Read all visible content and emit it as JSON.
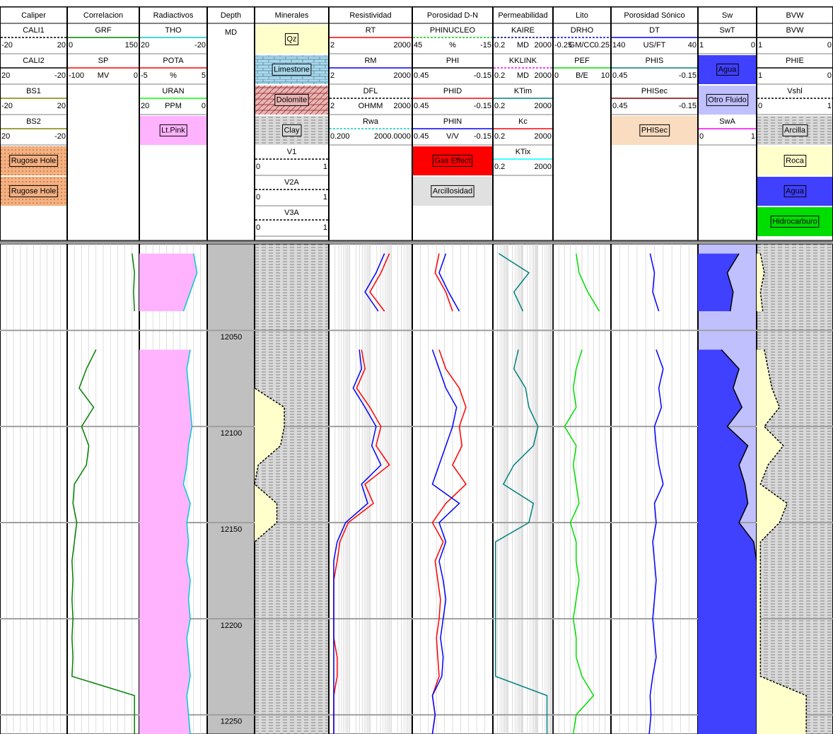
{
  "chart_data": {
    "type": "well-log",
    "ylim": [
      12005,
      12260
    ],
    "yticks": [
      12050,
      12100,
      12150,
      12200,
      12250
    ],
    "depth": [
      12010,
      12020,
      12030,
      12040,
      12050,
      12060,
      12070,
      12080,
      12090,
      12100,
      12110,
      12120,
      12130,
      12140,
      12150,
      12160,
      12170,
      12180,
      12190,
      12200,
      12210,
      12220,
      12230,
      12240,
      12250,
      12260
    ],
    "tracks": [
      {
        "title": "Caliper",
        "items": [
          {
            "name": "CALI1",
            "left": -20,
            "right": 20,
            "color": "#000000",
            "dash": true
          },
          {
            "name": "CALI2",
            "left": 20,
            "right": -20,
            "color": "#000000"
          },
          {
            "name": "BS1",
            "left": -20,
            "right": 20,
            "color": "#808000"
          },
          {
            "name": "BS2",
            "left": 20,
            "right": -20,
            "color": "#808000"
          },
          {
            "label": "Rugose Hole",
            "color": "#f4b183",
            "pattern": "dots"
          },
          {
            "label": "Rugose Hole",
            "color": "#f4b183",
            "pattern": "dots"
          }
        ]
      },
      {
        "title": "Correlacion",
        "items": [
          {
            "name": "GRF",
            "left": 0,
            "right": 150,
            "color": "#008000",
            "values": [
              135,
              140,
              138,
              140,
              null,
              60,
              40,
              25,
              55,
              30,
              45,
              40,
              15,
              12,
              20,
              15,
              10,
              12,
              10,
              12,
              10,
              12,
              10,
              140,
              140,
              140
            ]
          },
          {
            "name": "SP",
            "left": -100,
            "unit": "MV",
            "right": 0,
            "color": "#ff0000"
          }
        ]
      },
      {
        "title": "Radiactivos",
        "items": [
          {
            "name": "THO",
            "left": 20,
            "right": -20,
            "color": "#00cccc",
            "fill": "#ffb3ff",
            "values": [
              -12,
              -14,
              -10,
              -6,
              null,
              -10,
              -8,
              -9,
              -10,
              -11,
              -9,
              -8,
              -6,
              -10,
              -8,
              -9,
              -8,
              -10,
              -9,
              -10,
              -8,
              -9,
              -10,
              -8,
              -9,
              -10
            ]
          },
          {
            "name": "POTA",
            "left": -5,
            "unit": "%",
            "right": 5,
            "color": "#ff0000"
          },
          {
            "name": "URAN",
            "left": 20,
            "unit": "PPM",
            "right": 0,
            "color": "#00ff00"
          },
          {
            "label": "Lt.Pink",
            "color": "#ffb3ff"
          }
        ]
      },
      {
        "title": "Depth",
        "unit": "MD",
        "background": "#c0c0c0",
        "items": []
      },
      {
        "title": "Minerales",
        "background": "#d9d9d9",
        "pattern": "dash",
        "items": [
          {
            "label": "Qz",
            "color": "#ffffcc"
          },
          {
            "label": "Limestone",
            "color": "#a9d8ec",
            "pattern": "brick"
          },
          {
            "label": "Dolomite",
            "color": "#e8b4b4",
            "pattern": "hatch"
          },
          {
            "label": "Clay",
            "color": "#d9d9d9",
            "pattern": "dash"
          },
          {
            "name": "V1",
            "left": 0,
            "right": 1,
            "color": "#000000",
            "dash": true,
            "fill": "#ffffcc",
            "values": [
              0,
              0,
              0,
              0,
              null,
              0,
              0,
              0,
              0.4,
              0.4,
              0.35,
              0.05,
              0,
              0.3,
              0.3,
              0,
              0,
              0,
              0,
              0,
              0,
              0,
              0,
              0,
              0,
              0
            ]
          },
          {
            "name": "V2A",
            "left": 0,
            "right": 1,
            "color": "#000000",
            "dash": true
          },
          {
            "name": "V3A",
            "left": 0,
            "right": 1,
            "color": "#000000",
            "dash": true
          }
        ]
      },
      {
        "title": "Resistividad",
        "log": true,
        "items": [
          {
            "name": "RT",
            "left": 2,
            "right": 2000,
            "color": "#ff0000",
            "values": [
              300,
              150,
              60,
              200,
              null,
              30,
              40,
              20,
              60,
              150,
              100,
              300,
              40,
              80,
              10,
              5,
              4,
              3,
              3,
              3,
              3,
              4,
              4,
              3,
              3,
              3
            ]
          },
          {
            "name": "RM",
            "left": 2,
            "right": 2000,
            "color": "#0000ff",
            "values": [
              200,
              100,
              40,
              120,
              null,
              25,
              30,
              15,
              40,
              100,
              70,
              150,
              30,
              50,
              8,
              4,
              3,
              3,
              3,
              3,
              3,
              3,
              3,
              3,
              3,
              3
            ]
          },
          {
            "name": "DFL",
            "left": 2,
            "unit": "OHMM",
            "right": 2000,
            "color": "#000000",
            "dash": true
          },
          {
            "name": "Rwa",
            "left": {
              "value": 0.2,
              "label": "0.200"
            },
            "right": {
              "value": 2000,
              "label": "2000.0000"
            },
            "color": "#00cccc",
            "dash": true
          }
        ]
      },
      {
        "title": "Porosidad D-N",
        "items": [
          {
            "name": "PHINUCLEO",
            "left": 45,
            "unit": "%",
            "right": -15,
            "color": "#00cc00",
            "dash": true
          },
          {
            "name": "PHI",
            "left": 0.45,
            "right": -0.15,
            "color": "#000000"
          },
          {
            "name": "PHID",
            "left": 0.45,
            "right": -0.15,
            "color": "#ff0000",
            "values": [
              0.25,
              0.28,
              0.2,
              0.15,
              null,
              0.25,
              0.2,
              0.1,
              0.05,
              0.1,
              0.08,
              0.15,
              0.05,
              0.2,
              0.3,
              0.22,
              0.28,
              0.26,
              0.24,
              0.25,
              0.27,
              0.26,
              0.25,
              0.3,
              0.28,
              0.3
            ]
          },
          {
            "name": "PHIN",
            "left": 0.45,
            "unit": "V/V",
            "right": -0.15,
            "color": "#0000ff",
            "values": [
              0.2,
              0.25,
              0.18,
              0.1,
              null,
              0.3,
              0.25,
              0.2,
              0.12,
              0.15,
              0.2,
              0.25,
              0.3,
              0.1,
              0.25,
              0.2,
              0.25,
              0.22,
              0.2,
              0.22,
              0.24,
              0.22,
              0.23,
              0.3,
              0.28,
              0.3
            ]
          },
          {
            "label": "Gas Effect",
            "color": "#ff0000"
          },
          {
            "label": "Arcillosidad",
            "color": "#e0e0e0"
          }
        ]
      },
      {
        "title": "Permeabilidad",
        "log": true,
        "items": [
          {
            "name": "KAIRE",
            "left": 0.2,
            "unit": "MD",
            "right": 2000,
            "color": "#000080",
            "dash": true
          },
          {
            "name": "KKLINK",
            "left": 0.2,
            "unit": "MD",
            "right": 2000,
            "color": "#ff00ff",
            "dash": true
          },
          {
            "name": "KTim",
            "left": 0.2,
            "right": 2000,
            "color": "#008080",
            "values": [
              0.5,
              50,
              5,
              20,
              null,
              10,
              5,
              30,
              50,
              200,
              100,
              5,
              1,
              100,
              50,
              0.3,
              0.3,
              0.3,
              0.3,
              0.3,
              0.3,
              0.3,
              0.3,
              800,
              800,
              800
            ]
          },
          {
            "name": "Kc",
            "left": 0.2,
            "right": 2000,
            "color": "#ff0000"
          },
          {
            "name": "KTix",
            "left": 0.2,
            "right": 2000,
            "color": "#00ffff"
          }
        ]
      },
      {
        "title": "Lito",
        "items": [
          {
            "name": "DRHO",
            "left": -0.25,
            "unit": "GM/CC",
            "right": 0.25,
            "color": "#0000ff",
            "dash": true
          },
          {
            "name": "PEF",
            "left": 0,
            "unit": "B/E",
            "right": 10,
            "color": "#00dd00",
            "values": [
              4,
              4.5,
              6,
              8,
              null,
              5,
              4,
              3.5,
              4,
              2,
              4,
              3.5,
              4,
              4.5,
              3,
              4,
              4,
              4.5,
              4,
              3.5,
              4,
              4,
              5,
              7,
              4,
              3.5
            ]
          }
        ]
      },
      {
        "title": "Porosidad Sónico",
        "items": [
          {
            "name": "DT",
            "left": 140,
            "unit": "US/FT",
            "right": 40,
            "color": "#0000ff",
            "values": [
              95,
              90,
              92,
              85,
              null,
              88,
              80,
              85,
              82,
              90,
              88,
              85,
              80,
              90,
              88,
              92,
              90,
              88,
              90,
              92,
              90,
              88,
              92,
              95,
              94,
              96
            ]
          },
          {
            "name": "PHIS",
            "left": 0.45,
            "right": -0.15,
            "color": "#008080"
          },
          {
            "name": "PHISec",
            "left": 0.45,
            "right": -0.15,
            "color": "#800000"
          },
          {
            "label": "PHISec",
            "color": "#fadcc0"
          }
        ]
      },
      {
        "title": "Sw",
        "background": "#c0c0ff",
        "items": [
          {
            "name": "SwT",
            "left": 1,
            "right": 0,
            "color": "#000000",
            "fill": "#4040ff",
            "values": [
              0.3,
              0.5,
              0.4,
              0.45,
              null,
              0.6,
              0.3,
              0.4,
              0.25,
              0.5,
              0.15,
              0.3,
              0.2,
              0.15,
              0.3,
              0.05,
              0,
              0,
              0,
              0,
              0,
              0,
              0,
              0,
              0,
              0
            ]
          },
          {
            "label": "Agua",
            "color": "#4040ff"
          },
          {
            "label": "Otro Fluido",
            "color": "#c0c0ff"
          },
          {
            "name": "SwA",
            "left": 0,
            "right": 1,
            "color": "#ff00ff"
          }
        ]
      },
      {
        "title": "BVW",
        "background": "#d9d9d9",
        "pattern": "dash",
        "items": [
          {
            "name": "BVW",
            "left": 1,
            "right": 0,
            "color": "#000000"
          },
          {
            "name": "PHIE",
            "left": 1,
            "right": 0,
            "color": "#000000"
          },
          {
            "name": "Vshl",
            "left": 0,
            "right": 1,
            "color": "#000000",
            "dash": true,
            "fill": "#ffffcc",
            "values": [
              0.05,
              0.1,
              0.05,
              0.08,
              null,
              0.1,
              0.15,
              0.2,
              0.3,
              0.1,
              0.35,
              0.15,
              0.05,
              0.4,
              0.3,
              0.05,
              0.05,
              0.05,
              0.05,
              0.05,
              0.05,
              0.05,
              0.05,
              0.65,
              0.65,
              0.65
            ]
          },
          {
            "label": "Arcilla",
            "color": "#d9d9d9",
            "pattern": "dash"
          },
          {
            "label": "Roca",
            "color": "#ffffcc"
          },
          {
            "label": "Agua",
            "color": "#4040ff"
          },
          {
            "label": "Hidrocarburo",
            "color": "#00dd00"
          }
        ]
      }
    ]
  }
}
